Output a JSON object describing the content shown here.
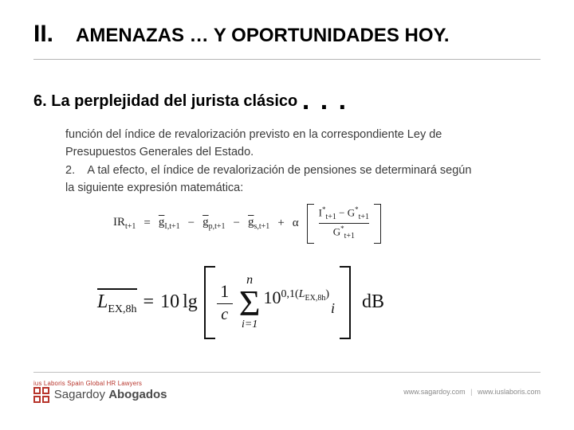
{
  "header": {
    "roman": "II.",
    "title": "AMENAZAS … Y OPORTUNIDADES HOY."
  },
  "subtitle": {
    "number": "6.",
    "text": "La perplejidad del jurista clásico",
    "ellipsis": ". . ."
  },
  "body": {
    "line1": "función del índice de revalorización previsto en la correspondiente Ley de",
    "line2": "Presupuestos Generales del Estado.",
    "item2_num": "2.",
    "item2_text": "A tal efecto, el índice de revalorización de pensiones se determinará según",
    "line4": "la siguiente expresión matemática:"
  },
  "formula1": {
    "lhs": "IR",
    "lhs_sub": "t+1",
    "eq": "=",
    "g1": "g",
    "g1_sub": "I,t+1",
    "minus1": "−",
    "g2": "g",
    "g2_sub": "p,t+1",
    "minus2": "−",
    "g3": "g",
    "g3_sub": "s,t+1",
    "plus": "+",
    "alpha": "α",
    "num_left": "I",
    "num_left_sup": "*",
    "num_left_sub": "t+1",
    "num_minus": "−",
    "num_right": "G",
    "num_right_sup": "*",
    "num_right_sub": "t+1",
    "den": "G",
    "den_sup": "*",
    "den_sub": "t+1"
  },
  "formula2": {
    "L": "L",
    "L_sub": "EX,8h",
    "eq": "=",
    "ten": "10",
    "lg": "lg",
    "frac_n": "1",
    "frac_d": "c",
    "sum_top": "n",
    "sigma": "Σ",
    "sum_bot": "i=1",
    "base": "10",
    "exp_left": "0,1(",
    "exp_L": "L",
    "exp_L_sub": "EX,8h",
    "exp_right": ")",
    "exp_i": "i",
    "dB": "dB"
  },
  "footer": {
    "top_line": "ius Laboris Spain   Global HR Lawyers",
    "brand_light": "Sagardoy",
    "brand_bold": "Abogados",
    "right1": "www.sagardoy.com",
    "sep": "|",
    "right2": "www.iuslaboris.com"
  },
  "colors": {
    "text": "#000000",
    "body_text": "#3a3a3a",
    "rule": "#b5b5b5",
    "brand": "#b7342b",
    "footer_text": "#8a8a8a"
  },
  "typography": {
    "roman_fontsize": 30,
    "title_fontsize": 24,
    "subtitle_fontsize": 20,
    "body_fontsize": 14.5,
    "formula2_fontsize": 24
  }
}
